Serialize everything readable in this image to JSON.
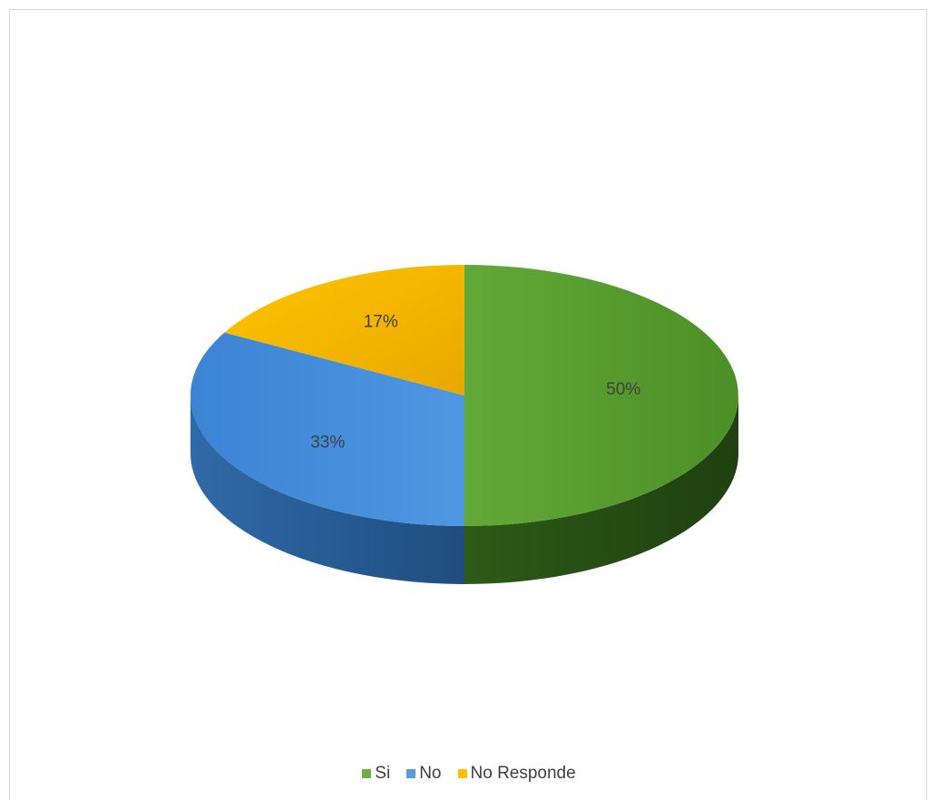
{
  "chart_data": {
    "type": "pie",
    "style": "3d",
    "title": "",
    "categories": [
      "Si",
      "No",
      "No Responde"
    ],
    "values": [
      50,
      33,
      17
    ],
    "data_labels": [
      "50%",
      "33%",
      "17%"
    ],
    "colors": [
      "#70ad47",
      "#5b9bd5",
      "#ffc000"
    ],
    "legend_position": "bottom"
  }
}
